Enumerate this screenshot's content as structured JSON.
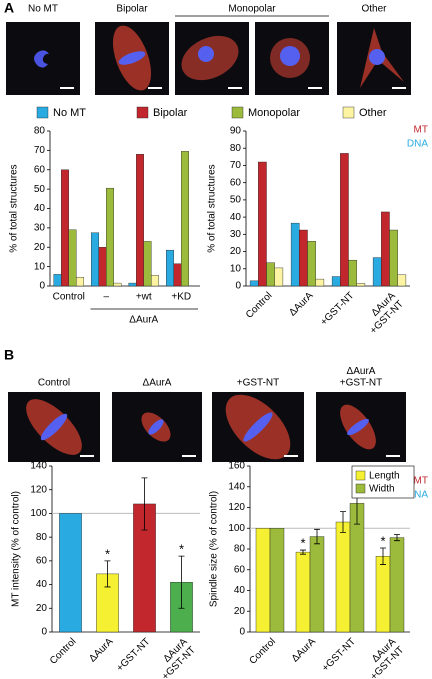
{
  "panel_labels": [
    "A",
    "B"
  ],
  "images_a": {
    "labels": [
      "No MT",
      "Bipolar",
      "Monopolar",
      "Other"
    ],
    "channels": [
      "MT",
      "DNA"
    ]
  },
  "images_b": {
    "labels": [
      "Control",
      "ΔAurA",
      "+GST-NT",
      "ΔAurA\n+GST-NT"
    ],
    "channels": [
      "MT",
      "DNA"
    ]
  },
  "chart_data": [
    {
      "type": "bar",
      "y_label": "% of total structures",
      "categories": [
        "Control",
        "–",
        "+wt",
        "+KD"
      ],
      "group_label": "ΔAurA",
      "series": [
        {
          "name": "No MT",
          "color": "#29abe2",
          "values": [
            6,
            27.5,
            1.5,
            18.5
          ]
        },
        {
          "name": "Bipolar",
          "color": "#c1272d",
          "values": [
            60,
            20,
            68,
            11.5
          ]
        },
        {
          "name": "Monopolar",
          "color": "#9cba3c",
          "values": [
            29,
            50.5,
            23,
            69.5
          ]
        },
        {
          "name": "Other",
          "color": "#fcf4a3",
          "values": [
            4.5,
            1.5,
            5.5,
            0
          ]
        }
      ],
      "ylim": [
        0,
        80
      ],
      "yticks": [
        0,
        10,
        20,
        30,
        40,
        50,
        60,
        70,
        80
      ]
    },
    {
      "type": "bar",
      "y_label": "% of total structures",
      "categories": [
        "Control",
        "ΔAurA",
        "+GST-NT",
        "ΔAurA\n+GST-NT"
      ],
      "series": [
        {
          "name": "No MT",
          "color": "#29abe2",
          "values": [
            3,
            36.5,
            5.5,
            16.5
          ]
        },
        {
          "name": "Bipolar",
          "color": "#c1272d",
          "values": [
            72,
            32.5,
            77,
            43
          ]
        },
        {
          "name": "Monopolar",
          "color": "#9cba3c",
          "values": [
            13.5,
            26,
            15,
            32.5
          ]
        },
        {
          "name": "Other",
          "color": "#fcf4a3",
          "values": [
            10.5,
            4,
            1.5,
            6.5
          ]
        }
      ],
      "ylim": [
        0,
        90
      ],
      "yticks": [
        0,
        10,
        20,
        30,
        40,
        50,
        60,
        70,
        80,
        90
      ]
    },
    {
      "type": "bar",
      "y_label": "MT intensity (% of control)",
      "categories": [
        "Control",
        "ΔAurA",
        "+GST-NT",
        "ΔAurA\n+GST-NT"
      ],
      "values": [
        100,
        49,
        108,
        42
      ],
      "errors": [
        null,
        11,
        22,
        22
      ],
      "colors": [
        "#29abe2",
        "#f5f032",
        "#c1272d",
        "#4cae4c"
      ],
      "annotations": [
        null,
        "*",
        null,
        "*"
      ],
      "reference_line": 100,
      "ylim": [
        0,
        140
      ],
      "yticks": [
        0,
        20,
        40,
        60,
        80,
        100,
        120,
        140
      ]
    },
    {
      "type": "bar",
      "y_label": "Spindle size (% of control)",
      "categories": [
        "Control",
        "ΔAurA",
        "+GST-NT",
        "ΔAurA\n+GST-NT"
      ],
      "series": [
        {
          "name": "Length",
          "color": "#f5f032",
          "values": [
            100,
            77,
            106,
            73
          ],
          "errors": [
            null,
            2,
            10,
            8
          ],
          "annotations": [
            null,
            "*",
            null,
            "*"
          ]
        },
        {
          "name": "Width",
          "color": "#9cba3c",
          "values": [
            100,
            92,
            124,
            91
          ],
          "errors": [
            null,
            7,
            20,
            3
          ]
        }
      ],
      "reference_line": 100,
      "legend": "upper right",
      "ylim": [
        0,
        160
      ],
      "yticks": [
        0,
        20,
        40,
        60,
        80,
        100,
        120,
        140,
        160
      ]
    }
  ]
}
